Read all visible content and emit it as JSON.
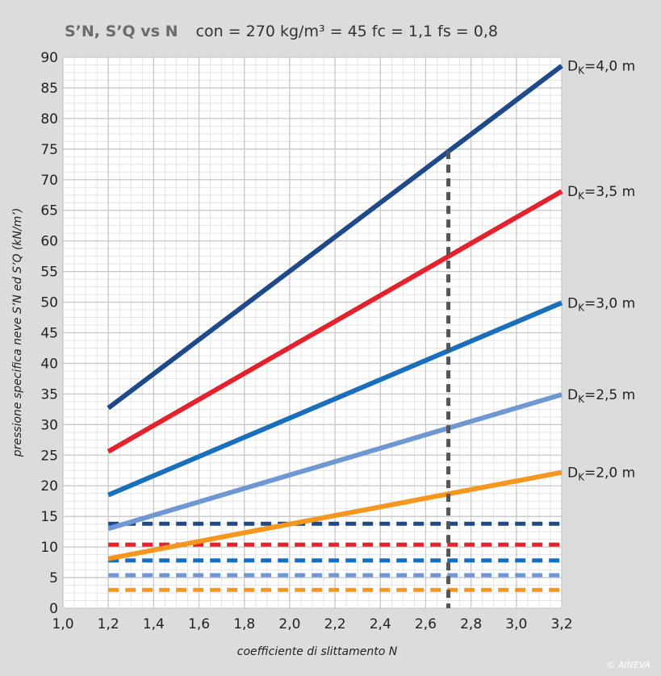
{
  "title": {
    "prefix": "S’N, S’Q vs N",
    "rest": "con = 270 kg/m³    = 45   fc = 1,1   fs = 0,8"
  },
  "copyright": "© AINEVA",
  "chart_data": {
    "type": "line",
    "xlabel": "coefficiente di slittamento N",
    "ylabel": "pressione specifica neve S’N ed S’Q (kN/m’)",
    "xlim": [
      1.0,
      3.2
    ],
    "ylim": [
      0,
      90
    ],
    "x_ticks": [
      "1,0",
      "1,2",
      "1,4",
      "1,6",
      "1,8",
      "2,0",
      "2,2",
      "2,4",
      "2,6",
      "2,8",
      "3,0",
      "3,2"
    ],
    "y_ticks": [
      "0",
      "5",
      "10",
      "15",
      "20",
      "25",
      "30",
      "35",
      "40",
      "45",
      "50",
      "55",
      "60",
      "65",
      "70",
      "75",
      "80",
      "85",
      "90"
    ],
    "grid": true,
    "series": [
      {
        "name": "DK=4,0 m",
        "color": "#1e4a8a",
        "x": [
          1.2,
          3.2
        ],
        "y": [
          32.7,
          88.6
        ]
      },
      {
        "name": "DK=3,5 m",
        "color": "#e4222e",
        "x": [
          1.2,
          3.2
        ],
        "y": [
          25.6,
          68.1
        ]
      },
      {
        "name": "DK=3,0 m",
        "color": "#1a6fbd",
        "x": [
          1.2,
          3.2
        ],
        "y": [
          18.5,
          49.9
        ]
      },
      {
        "name": "DK=2,5 m",
        "color": "#6f97d4",
        "x": [
          1.2,
          3.2
        ],
        "y": [
          13.0,
          34.9
        ]
      },
      {
        "name": "DK=2,0 m",
        "color": "#f5961e",
        "x": [
          1.2,
          3.2
        ],
        "y": [
          8.1,
          22.2
        ]
      }
    ],
    "dashed_series": [
      {
        "color": "#1e4a8a",
        "x": [
          1.2,
          3.2
        ],
        "y": [
          13.8,
          13.8
        ]
      },
      {
        "color": "#e4222e",
        "x": [
          1.2,
          3.2
        ],
        "y": [
          10.4,
          10.4
        ]
      },
      {
        "color": "#1a6fbd",
        "x": [
          1.2,
          3.2
        ],
        "y": [
          7.8,
          7.8
        ]
      },
      {
        "color": "#6f97d4",
        "x": [
          1.2,
          3.2
        ],
        "y": [
          5.4,
          5.4
        ]
      },
      {
        "color": "#f5961e",
        "x": [
          1.2,
          3.2
        ],
        "y": [
          3.0,
          3.0
        ]
      }
    ],
    "reference_line": {
      "x": 2.7,
      "y_top": 74.7,
      "color": "#555555"
    }
  }
}
